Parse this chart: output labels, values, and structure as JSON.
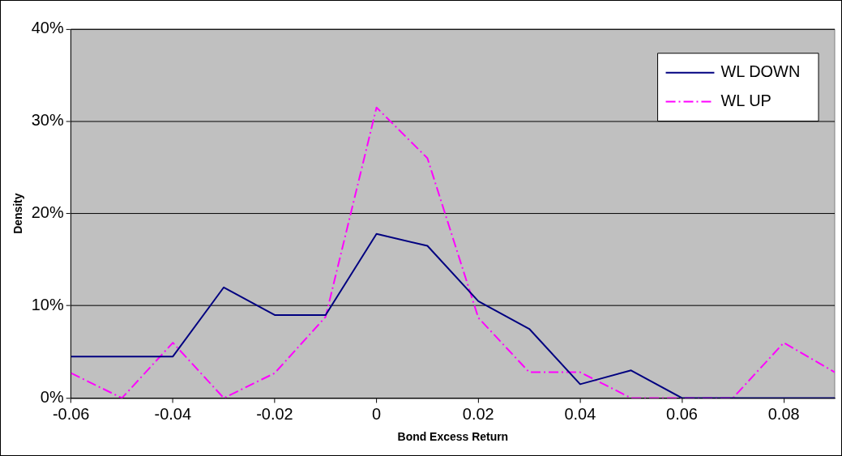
{
  "chart_data": {
    "type": "line",
    "xlabel": "Bond Excess Return",
    "ylabel": "Density",
    "x": [
      -0.06,
      -0.05,
      -0.04,
      -0.03,
      -0.02,
      -0.01,
      0,
      0.01,
      0.02,
      0.03,
      0.04,
      0.05,
      0.06,
      0.07,
      0.08,
      0.09
    ],
    "series": [
      {
        "name": "WL DOWN",
        "color": "#000080",
        "line_style": "solid",
        "values": [
          4.5,
          4.5,
          4.5,
          12,
          9,
          9,
          17.8,
          16.5,
          10.5,
          7.5,
          1.5,
          3,
          0,
          0,
          0,
          0
        ]
      },
      {
        "name": "WL UP",
        "color": "#ff00ff",
        "line_style": "dashed",
        "values": [
          2.7,
          0,
          6,
          0,
          2.7,
          8.8,
          31.5,
          26,
          8.7,
          2.8,
          2.8,
          0,
          0,
          0,
          6,
          2.8
        ]
      }
    ],
    "xlim": [
      -0.06,
      0.09
    ],
    "xticks": [
      -0.06,
      -0.04,
      -0.02,
      0,
      0.02,
      0.04,
      0.06,
      0.08
    ],
    "ylim": [
      0,
      40
    ],
    "yticks": [
      {
        "value": 0,
        "label": "0%"
      },
      {
        "value": 10,
        "label": "10%"
      },
      {
        "value": 20,
        "label": "20%"
      },
      {
        "value": 30,
        "label": "30%"
      },
      {
        "value": 40,
        "label": "40%"
      }
    ],
    "grid": "y",
    "legend": "top right",
    "marker": "none"
  }
}
